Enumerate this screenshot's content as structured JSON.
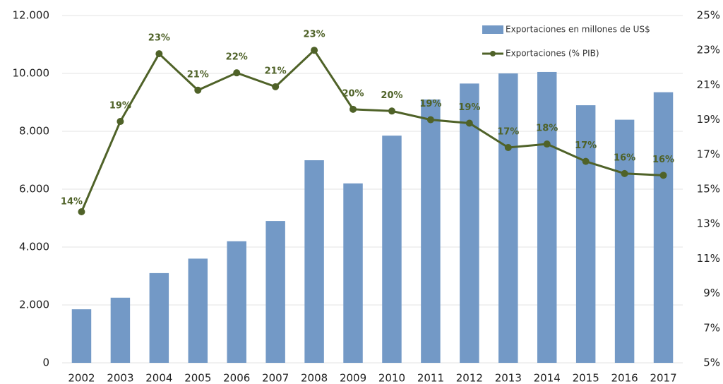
{
  "chart_data": {
    "type": "bar_line",
    "categories": [
      "2002",
      "2003",
      "2004",
      "2005",
      "2006",
      "2007",
      "2008",
      "2009",
      "2010",
      "2011",
      "2012",
      "2013",
      "2014",
      "2015",
      "2016",
      "2017"
    ],
    "series": [
      {
        "name": "Exportaciones en millones de US$",
        "type": "bar",
        "color": "#7399c6",
        "values": [
          1850,
          2250,
          3100,
          3600,
          4200,
          4900,
          7000,
          6200,
          7850,
          9100,
          9650,
          10000,
          10050,
          8900,
          8400,
          9350
        ]
      },
      {
        "name": "Exportaciones (% PIB)",
        "type": "line",
        "axis": "y2",
        "color": "#4f6228",
        "values": [
          13.7,
          18.9,
          22.8,
          20.7,
          21.7,
          20.9,
          23.0,
          19.6,
          19.5,
          19.0,
          18.8,
          17.4,
          17.6,
          16.6,
          15.9,
          15.8
        ],
        "value_labels": [
          "14%",
          "19%",
          "23%",
          "21%",
          "22%",
          "21%",
          "23%",
          "20%",
          "20%",
          "19%",
          "19%",
          "17%",
          "18%",
          "17%",
          "16%",
          "16%"
        ]
      }
    ],
    "ylim": [
      0,
      12000
    ],
    "yticks": [
      {
        "value": 0,
        "label": "0"
      },
      {
        "value": 2000,
        "label": "2.000"
      },
      {
        "value": 4000,
        "label": "4.000"
      },
      {
        "value": 6000,
        "label": "6.000"
      },
      {
        "value": 8000,
        "label": "8.000"
      },
      {
        "value": 10000,
        "label": "10.000"
      },
      {
        "value": 12000,
        "label": "12.000"
      }
    ],
    "y2lim": [
      5,
      25
    ],
    "y2ticks": [
      {
        "value": 5,
        "label": "5%"
      },
      {
        "value": 7,
        "label": "7%"
      },
      {
        "value": 9,
        "label": "9%"
      },
      {
        "value": 11,
        "label": "11%"
      },
      {
        "value": 13,
        "label": "13%"
      },
      {
        "value": 15,
        "label": "15%"
      },
      {
        "value": 17,
        "label": "17%"
      },
      {
        "value": 19,
        "label": "19%"
      },
      {
        "value": 21,
        "label": "21%"
      },
      {
        "value": 23,
        "label": "23%"
      },
      {
        "value": 25,
        "label": "25%"
      }
    ],
    "grid": true,
    "legend": "top-right"
  }
}
